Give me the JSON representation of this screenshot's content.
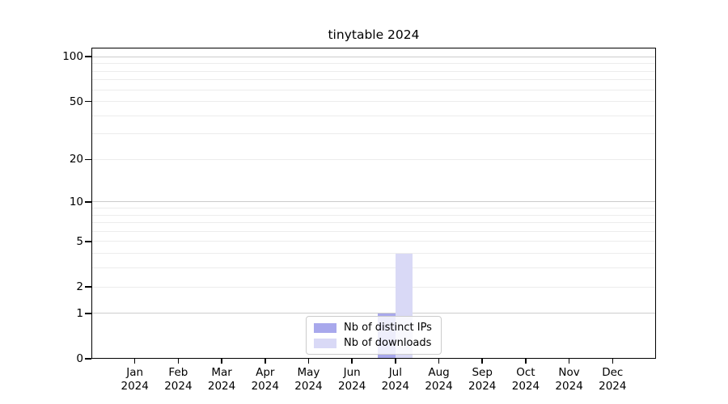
{
  "chart_data": {
    "type": "bar",
    "title": "tinytable 2024",
    "categories": [
      {
        "month": "Jan",
        "year": "2024"
      },
      {
        "month": "Feb",
        "year": "2024"
      },
      {
        "month": "Mar",
        "year": "2024"
      },
      {
        "month": "Apr",
        "year": "2024"
      },
      {
        "month": "May",
        "year": "2024"
      },
      {
        "month": "Jun",
        "year": "2024"
      },
      {
        "month": "Jul",
        "year": "2024"
      },
      {
        "month": "Aug",
        "year": "2024"
      },
      {
        "month": "Sep",
        "year": "2024"
      },
      {
        "month": "Oct",
        "year": "2024"
      },
      {
        "month": "Nov",
        "year": "2024"
      },
      {
        "month": "Dec",
        "year": "2024"
      }
    ],
    "series": [
      {
        "name": "Nb of distinct IPs",
        "color": "#a8a8ec",
        "values": [
          0,
          0,
          0,
          0,
          0,
          0,
          1,
          0,
          0,
          0,
          0,
          0
        ]
      },
      {
        "name": "Nb of downloads",
        "color": "#d9d9f6",
        "values": [
          0,
          0,
          0,
          0,
          0,
          0,
          4,
          0,
          0,
          0,
          0,
          0
        ]
      }
    ],
    "xlabel": "",
    "ylabel": "",
    "yaxis": {
      "scale": "log1p",
      "ylim": [
        0,
        115
      ],
      "tick_values": [
        0,
        1,
        2,
        5,
        10,
        20,
        50,
        100
      ],
      "major_gridlines": [
        1,
        10,
        100
      ],
      "minor_gridlines": [
        2,
        3,
        4,
        5,
        6,
        7,
        8,
        9,
        20,
        30,
        40,
        50,
        60,
        70,
        80,
        90
      ]
    },
    "legend": {
      "position": "lower center inside",
      "labels": [
        "Nb of distinct IPs",
        "Nb of downloads"
      ]
    },
    "grid": true,
    "colors": {
      "major_grid": "#cccccc",
      "minor_grid": "#ececec",
      "frame": "#000000",
      "text": "#000000",
      "background": "#ffffff"
    }
  }
}
